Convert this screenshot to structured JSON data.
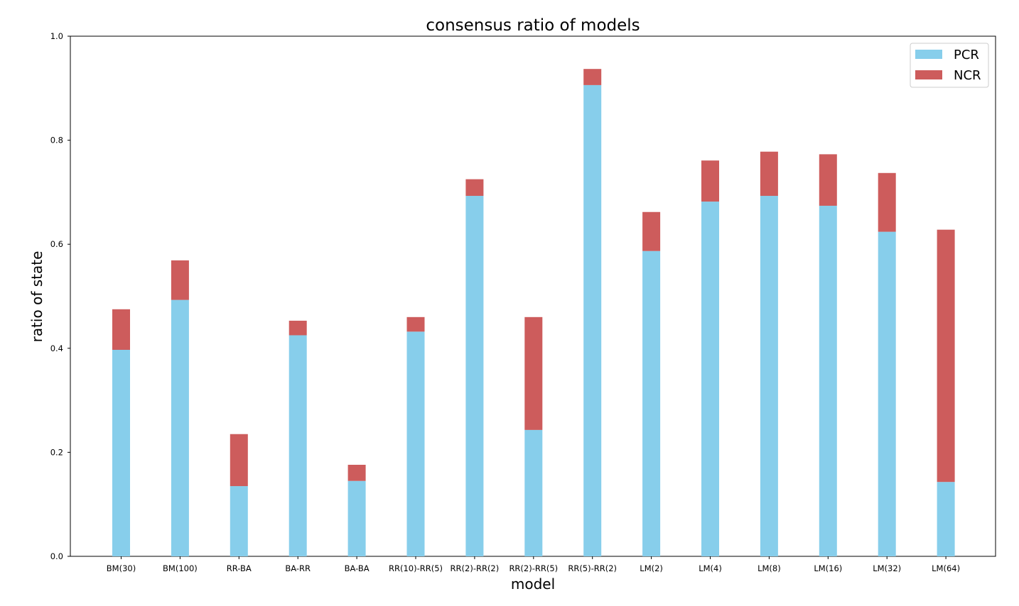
{
  "chart_data": {
    "type": "bar",
    "stacked": true,
    "title": "consensus ratio of models",
    "xlabel": "model",
    "ylabel": "ratio of state",
    "ylim": [
      0,
      1.0
    ],
    "yticks": [
      "0.0",
      "0.2",
      "0.4",
      "0.6",
      "0.8",
      "1.0"
    ],
    "categories": [
      "BM(30)",
      "BM(100)",
      "RR-BA",
      "BA-RR",
      "BA-BA",
      "RR(10)-RR(5)",
      "RR(2)-RR(2)",
      "RR(2)-RR(5)",
      "RR(5)-RR(2)",
      "LM(2)",
      "LM(4)",
      "LM(8)",
      "LM(16)",
      "LM(32)",
      "LM(64)"
    ],
    "series": [
      {
        "name": "PCR",
        "color": "#87ceeb",
        "values": [
          0.397,
          0.493,
          0.135,
          0.425,
          0.145,
          0.432,
          0.693,
          0.243,
          0.906,
          0.587,
          0.682,
          0.693,
          0.674,
          0.624,
          0.143
        ]
      },
      {
        "name": "NCR",
        "color": "#cd5c5c",
        "values": [
          0.078,
          0.076,
          0.1,
          0.028,
          0.031,
          0.028,
          0.032,
          0.217,
          0.031,
          0.075,
          0.079,
          0.085,
          0.099,
          0.113,
          0.485
        ]
      }
    ],
    "legend_position": "top-right",
    "grid": false
  }
}
